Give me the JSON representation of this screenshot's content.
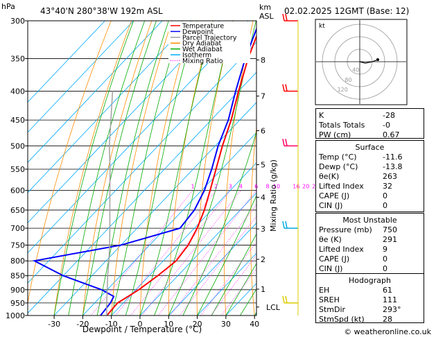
{
  "header": {
    "hpa": "hPa",
    "location": "43°40'N  280°38'W  192m  ASL",
    "km_asl": "km\nASL",
    "datetime": "02.02.2025  12GMT  (Base: 12)"
  },
  "footer": {
    "copyright": "© weatheronline.co.uk"
  },
  "chart_data": {
    "type": "line",
    "subtype": "skew-t log-p",
    "xlabel": "Dewpoint / Temperature (°C)",
    "ylabel": "",
    "right_label": "Mixing Ratio (g/kg)",
    "x_ticks": [
      -30,
      -20,
      -10,
      0,
      10,
      20,
      30,
      40
    ],
    "pressure_levels": [
      300,
      350,
      400,
      450,
      500,
      550,
      600,
      650,
      700,
      750,
      800,
      850,
      900,
      950,
      1000
    ],
    "km_ticks": [
      {
        "label": "8",
        "p": 352
      },
      {
        "label": "7",
        "p": 408
      },
      {
        "label": "6",
        "p": 470
      },
      {
        "label": "5",
        "p": 540
      },
      {
        "label": "4",
        "p": 617
      },
      {
        "label": "3",
        "p": 702
      },
      {
        "label": "2",
        "p": 795
      },
      {
        "label": "1",
        "p": 898
      },
      {
        "label": "LCL",
        "p": 966
      }
    ],
    "mixing_ratio_labels": [
      "1",
      "2",
      "3",
      "4",
      "6",
      "8",
      "10",
      "16",
      "20",
      "25"
    ],
    "mixing_ratio_values": [
      1,
      2,
      3,
      4,
      6,
      8,
      10,
      16,
      20,
      25
    ],
    "legend": [
      "Temperature",
      "Dewpoint",
      "Parcel Trajectory",
      "Dry Adiabat",
      "Wet Adiabat",
      "Isotherm",
      "Mixing Ratio"
    ],
    "legend_colors": [
      "#ff0000",
      "#0000ff",
      "#a0a0a0",
      "#ff8c00",
      "#00aa00",
      "#00aaff",
      "#ff00ff"
    ],
    "series": [
      {
        "name": "Temperature",
        "color": "#ff0000",
        "p": [
          1000,
          950,
          925,
          900,
          850,
          800,
          750,
          700,
          650,
          600,
          550,
          500,
          450,
          400,
          350,
          300
        ],
        "t": [
          -11.6,
          -12.0,
          -10.5,
          -9.0,
          -7.0,
          -5.5,
          -6.5,
          -9.0,
          -12.5,
          -17.0,
          -22.0,
          -27.5,
          -33.0,
          -40.0,
          -47.5,
          -55.0
        ]
      },
      {
        "name": "Dewpoint",
        "color": "#0000ff",
        "p": [
          1000,
          950,
          925,
          900,
          850,
          800,
          750,
          700,
          650,
          600,
          550,
          500,
          450,
          400,
          350,
          300
        ],
        "t": [
          -13.8,
          -14.5,
          -15.5,
          -22.0,
          -40.0,
          -55.0,
          -30.0,
          -15.0,
          -16.0,
          -19.0,
          -23.5,
          -29.0,
          -34.0,
          -41.0,
          -48.5,
          -56.0
        ]
      },
      {
        "name": "Parcel Trajectory",
        "color": "#a0a0a0",
        "p": [
          1000,
          966,
          900,
          850,
          800,
          750,
          700,
          650,
          600,
          550,
          500,
          450,
          400
        ],
        "t": [
          -11.6,
          -14.5,
          -20.0,
          -24.5,
          -29.0,
          -34.0,
          -39.5,
          -45.5,
          -52.0,
          -59.0,
          -67.0,
          -75.0,
          -84.0
        ]
      }
    ],
    "wind_barbs_colors": [
      "#ff0000",
      "#ff0000",
      "#ff0066",
      "#00aadd",
      "#ddcc00"
    ]
  },
  "hodograph": {
    "unit": "kt",
    "ring_labels": [
      "40",
      "80",
      "120"
    ]
  },
  "indices": {
    "rows": [
      {
        "k": "K",
        "v": "-28"
      },
      {
        "k": "Totals Totals",
        "v": "-0"
      },
      {
        "k": "PW (cm)",
        "v": "0.67"
      }
    ]
  },
  "surface": {
    "title": "Surface",
    "rows": [
      {
        "k": "Temp (°C)",
        "v": "-11.6"
      },
      {
        "k": "Dewp (°C)",
        "v": "-13.8"
      },
      {
        "k": "θe(K)",
        "v": "263"
      },
      {
        "k": "Lifted Index",
        "v": "32"
      },
      {
        "k": "CAPE (J)",
        "v": "0"
      },
      {
        "k": "CIN (J)",
        "v": "0"
      }
    ]
  },
  "most_unstable": {
    "title": "Most Unstable",
    "rows": [
      {
        "k": "Pressure (mb)",
        "v": "750"
      },
      {
        "k": "θe (K)",
        "v": "291"
      },
      {
        "k": "Lifted Index",
        "v": "9"
      },
      {
        "k": "CAPE (J)",
        "v": "0"
      },
      {
        "k": "CIN (J)",
        "v": "0"
      }
    ]
  },
  "hodo_table": {
    "title": "Hodograph",
    "rows": [
      {
        "k": "EH",
        "v": "61"
      },
      {
        "k": "SREH",
        "v": "111"
      },
      {
        "k": "StmDir",
        "v": "293°"
      },
      {
        "k": "StmSpd (kt)",
        "v": "28"
      }
    ]
  }
}
